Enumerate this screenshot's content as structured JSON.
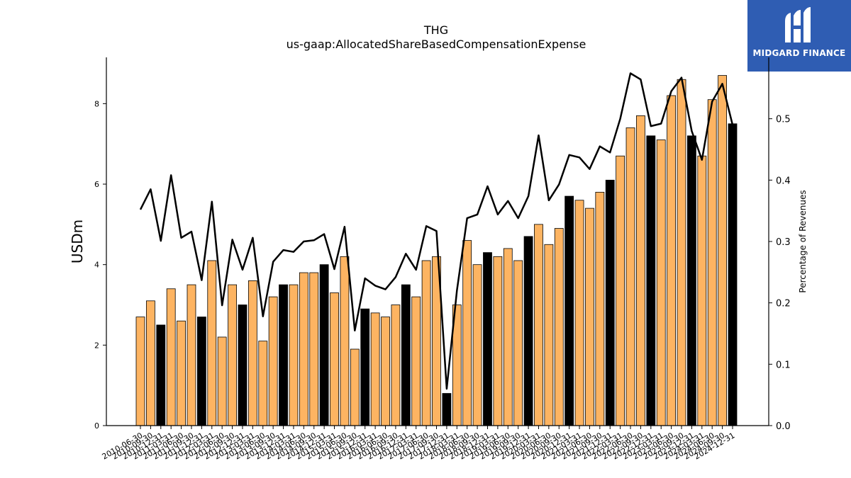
{
  "brand": {
    "name": "MIDGARD FINANCE",
    "mark": "midgard-logo-icon",
    "bg": "#2f5db3"
  },
  "chart_data": {
    "type": "bar",
    "title": "THG",
    "subtitle": "us-gaap:AllocatedShareBasedCompensationExpense",
    "ylabel": "USDm",
    "y2label": "Percentage of Revenues",
    "ylim": [
      0,
      9.15
    ],
    "y2lim": [
      0,
      0.6
    ],
    "yticks": [
      0,
      2,
      4,
      6,
      8
    ],
    "y2ticks": [
      0.0,
      0.1,
      0.2,
      0.3,
      0.4,
      0.5
    ],
    "y2tick_labels": [
      "0.0",
      "0.1",
      "0.2",
      "0.3",
      "0.4",
      "0.5"
    ],
    "colors": {
      "quarter": "#fdb462",
      "annual": "#000000",
      "line": "#000000"
    },
    "categories": [
      "2010-06-30",
      "2010-09-30",
      "2010-12-31",
      "2011-03-31",
      "2011-06-30",
      "2011-09-30",
      "2011-12-31",
      "2012-03-31",
      "2012-06-30",
      "2012-09-30",
      "2012-12-31",
      "2013-03-31",
      "2013-06-30",
      "2013-09-30",
      "2013-12-31",
      "2014-03-31",
      "2014-06-30",
      "2014-09-30",
      "2014-12-31",
      "2015-03-31",
      "2015-06-30",
      "2015-09-30",
      "2015-12-31",
      "2016-03-31",
      "2016-06-30",
      "2016-09-30",
      "2016-12-31",
      "2017-03-31",
      "2017-06-30",
      "2017-09-30",
      "2017-12-31",
      "2018-03-31",
      "2018-06-30",
      "2018-09-30",
      "2018-12-31",
      "2019-03-31",
      "2019-06-30",
      "2019-09-30",
      "2019-12-31",
      "2020-03-31",
      "2020-06-30",
      "2020-09-30",
      "2020-12-31",
      "2021-03-31",
      "2021-06-30",
      "2021-09-30",
      "2021-12-31",
      "2022-03-31",
      "2022-06-30",
      "2022-09-30",
      "2022-12-31",
      "2023-03-31",
      "2023-06-30",
      "2023-09-30",
      "2023-12-31",
      "2024-03-31",
      "2024-06-30",
      "2024-09-30",
      "2024-12-31"
    ],
    "series": [
      {
        "type": "bar",
        "values": [
          2.7,
          3.1,
          2.5,
          3.4,
          2.6,
          3.5,
          2.7,
          4.1,
          2.2,
          3.5,
          3.0,
          3.6,
          2.1,
          3.2,
          3.5,
          3.5,
          3.8,
          3.8,
          4.0,
          3.3,
          4.2,
          1.9,
          2.9,
          2.8,
          2.7,
          3.0,
          3.5,
          3.2,
          4.1,
          4.2,
          0.8,
          3.0,
          4.6,
          4.0,
          4.3,
          4.2,
          4.4,
          4.1,
          4.7,
          5.0,
          4.5,
          4.9,
          5.7,
          5.6,
          5.4,
          5.8,
          6.1,
          6.7,
          7.4,
          7.7,
          7.2,
          7.1,
          8.2,
          8.6,
          7.2,
          6.7,
          8.1,
          8.7,
          7.5
        ],
        "annual": [
          false,
          false,
          true,
          false,
          false,
          false,
          true,
          false,
          false,
          false,
          true,
          false,
          false,
          false,
          true,
          false,
          false,
          false,
          true,
          false,
          false,
          false,
          true,
          false,
          false,
          false,
          true,
          false,
          false,
          false,
          true,
          false,
          false,
          false,
          true,
          false,
          false,
          false,
          true,
          false,
          false,
          false,
          true,
          false,
          false,
          false,
          true,
          false,
          false,
          false,
          true,
          false,
          false,
          false,
          true,
          false,
          false,
          false,
          true
        ]
      },
      {
        "type": "line",
        "axis": "right",
        "values": [
          0.352,
          0.385,
          0.301,
          0.408,
          0.306,
          0.316,
          0.237,
          0.365,
          0.196,
          0.303,
          0.254,
          0.306,
          0.178,
          0.267,
          0.286,
          0.283,
          0.3,
          0.302,
          0.312,
          0.255,
          0.324,
          0.155,
          0.24,
          0.228,
          0.222,
          0.242,
          0.28,
          0.254,
          0.325,
          0.317,
          0.06,
          0.22,
          0.338,
          0.344,
          0.39,
          0.344,
          0.366,
          0.338,
          0.374,
          0.473,
          0.367,
          0.393,
          0.441,
          0.437,
          0.418,
          0.455,
          0.445,
          0.5,
          0.574,
          0.564,
          0.488,
          0.492,
          0.545,
          0.567,
          0.48,
          0.433,
          0.528,
          0.557,
          0.49
        ]
      }
    ]
  }
}
